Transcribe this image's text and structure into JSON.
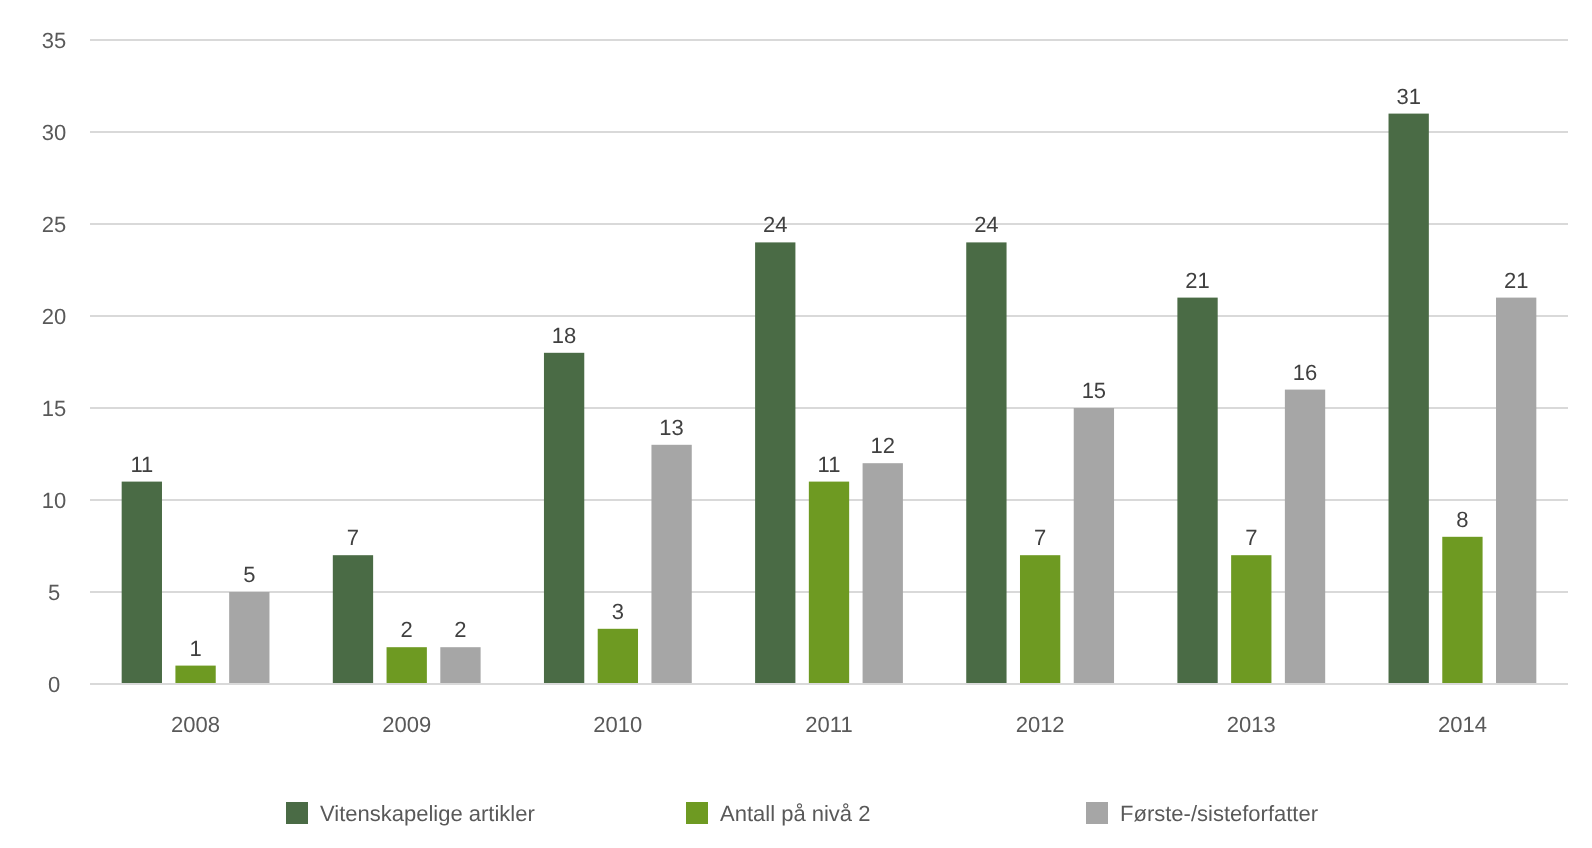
{
  "chart_data": {
    "type": "bar",
    "categories": [
      "2008",
      "2009",
      "2010",
      "2011",
      "2012",
      "2013",
      "2014"
    ],
    "series": [
      {
        "name": "Vitenskapelige artikler",
        "color": "#4a6b45",
        "values": [
          11,
          7,
          18,
          24,
          24,
          21,
          31
        ]
      },
      {
        "name": "Antall på nivå 2",
        "color": "#6e9a22",
        "values": [
          1,
          2,
          3,
          11,
          7,
          7,
          8
        ]
      },
      {
        "name": "Første-/sisteforfatter",
        "color": "#a6a6a6",
        "values": [
          5,
          2,
          13,
          12,
          15,
          16,
          21
        ]
      }
    ],
    "ylim": [
      0,
      35
    ],
    "yticks": [
      0,
      5,
      10,
      15,
      20,
      25,
      30,
      35
    ],
    "grid": "y",
    "legend": "bottom",
    "data_labels": true
  }
}
